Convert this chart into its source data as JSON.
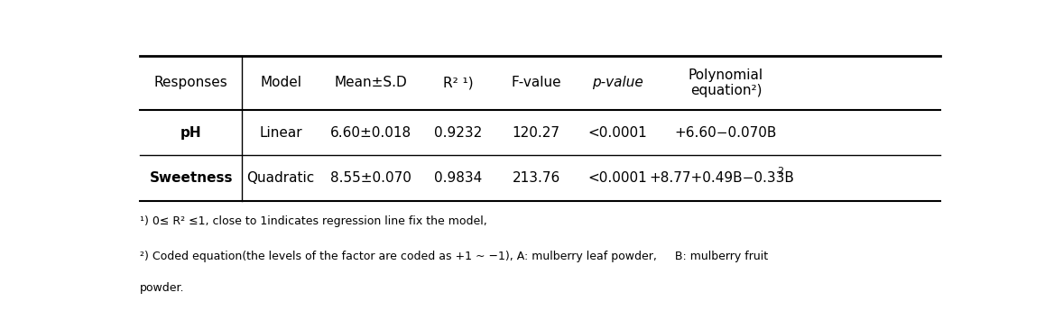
{
  "col_headers": [
    "Responses",
    "Model",
    "Mean±S.D",
    "R² ¹)",
    "F-value",
    "p-value",
    "Polynomial\nequation²)"
  ],
  "rows": [
    [
      "pH",
      "Linear",
      "6.60±0.018",
      "0.9232",
      "120.27",
      "<0.0001",
      "+6.60−0.070B"
    ],
    [
      "Sweetness",
      "Quadratic",
      "8.55±0.070",
      "0.9834",
      "213.76",
      "<0.0001",
      "+8.77+0.49B−0.33B"
    ]
  ],
  "footnote1": "¹) 0≤ R² ≤1, close to 1indicates regression line fix the model,",
  "footnote2": "²) Coded equation(the levels of the factor are coded as +1 ~ −1), A: mulberry leaf powder,     B: mulberry fruit",
  "footnote2b": "powder.",
  "font_size": 11,
  "footnote_font_size": 9,
  "bg_color": "#ffffff"
}
